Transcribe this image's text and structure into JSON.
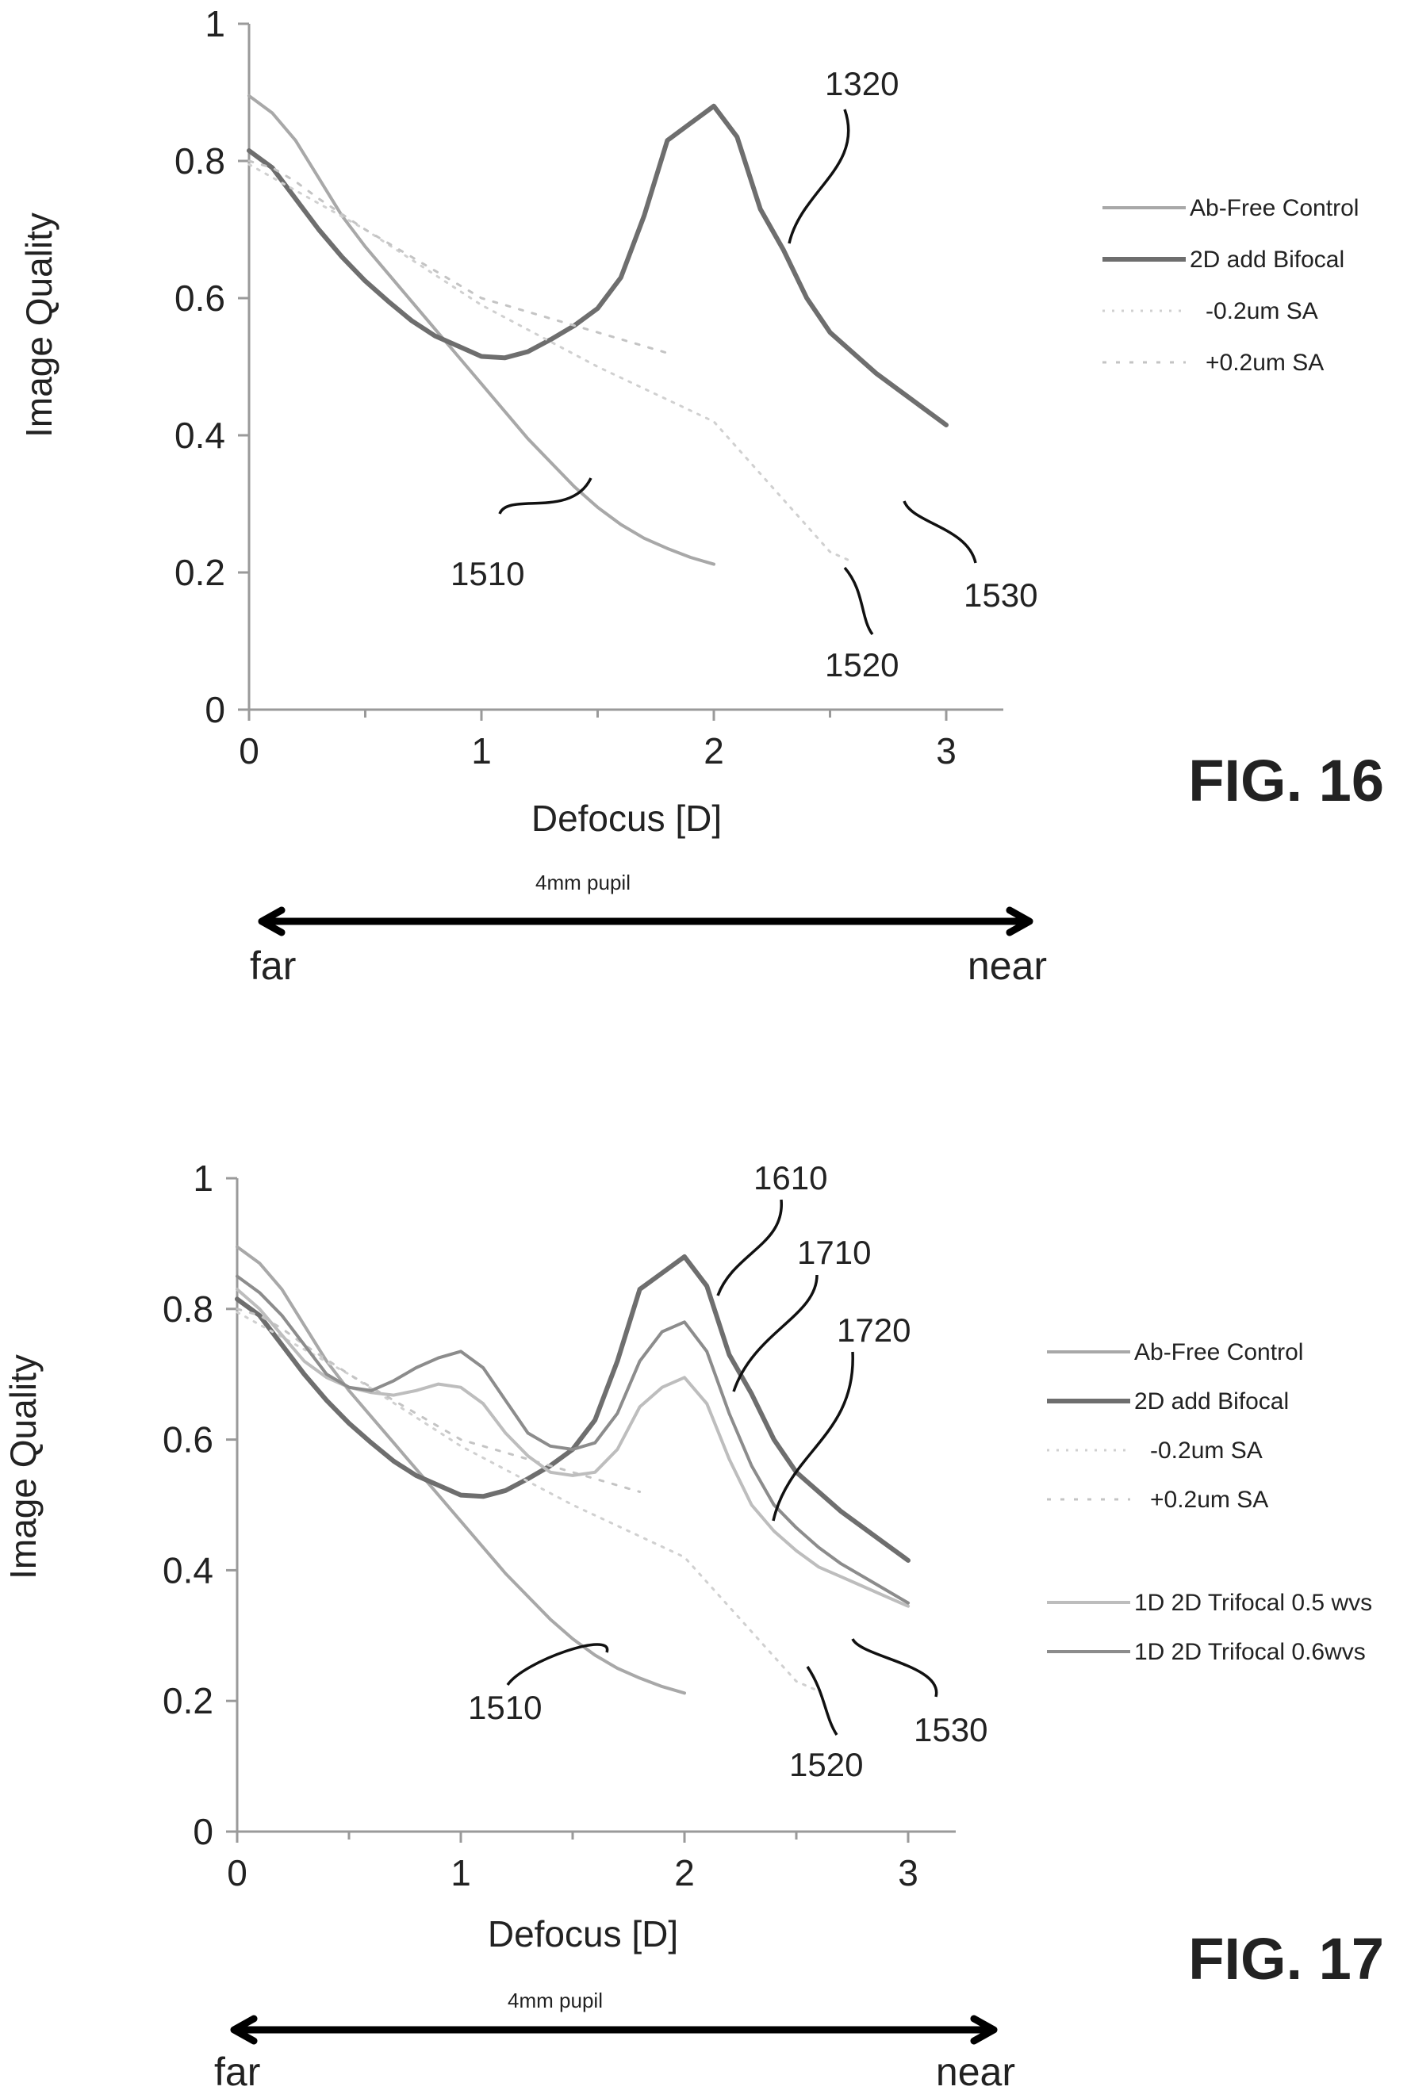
{
  "chart_data": [
    {
      "type": "line",
      "figure_label": "FIG. 16",
      "xlabel": "Defocus [D]",
      "ylabel": "Image Quality",
      "xlim": [
        0,
        3.2
      ],
      "ylim": [
        0,
        1
      ],
      "x_ticks": [
        "0",
        "1",
        "2",
        "3"
      ],
      "y_ticks": [
        "0",
        "0.2",
        "0.4",
        "0.6",
        "0.8",
        "1"
      ],
      "legend_position": "right",
      "pupil_label": "4mm pupil",
      "arrow_left_label": "far",
      "arrow_right_label": "near",
      "series": [
        {
          "name": "Ab-Free Control",
          "color": "#a8a8a8",
          "style": "solid",
          "width": 4,
          "x": [
            0,
            0.1,
            0.2,
            0.3,
            0.4,
            0.5,
            0.6,
            0.7,
            0.8,
            0.9,
            1.0,
            1.1,
            1.2,
            1.3,
            1.4,
            1.5,
            1.6,
            1.7,
            1.8,
            1.9,
            2.0
          ],
          "y": [
            0.895,
            0.87,
            0.83,
            0.775,
            0.72,
            0.675,
            0.635,
            0.595,
            0.555,
            0.515,
            0.475,
            0.435,
            0.395,
            0.36,
            0.325,
            0.295,
            0.27,
            0.25,
            0.235,
            0.222,
            0.212
          ]
        },
        {
          "name": "2D add Bifocal",
          "color": "#6e6e6e",
          "style": "solid",
          "width": 6,
          "x": [
            0,
            0.1,
            0.2,
            0.3,
            0.4,
            0.5,
            0.6,
            0.7,
            0.8,
            0.9,
            1.0,
            1.1,
            1.2,
            1.3,
            1.4,
            1.5,
            1.6,
            1.7,
            1.8,
            1.9,
            2.0,
            2.1,
            2.2,
            2.3,
            2.4,
            2.5,
            2.6,
            2.7,
            2.8,
            2.9,
            3.0
          ],
          "y": [
            0.815,
            0.79,
            0.745,
            0.7,
            0.66,
            0.625,
            0.595,
            0.567,
            0.545,
            0.53,
            0.515,
            0.513,
            0.522,
            0.54,
            0.56,
            0.585,
            0.63,
            0.72,
            0.83,
            0.855,
            0.88,
            0.835,
            0.73,
            0.67,
            0.6,
            0.55,
            0.52,
            0.49,
            0.465,
            0.44,
            0.415
          ]
        },
        {
          "name": "-0.2um SA",
          "color": "#d0d0d0",
          "style": "dotted",
          "width": 3,
          "x": [
            0,
            0.5,
            1.0,
            1.5,
            2.0,
            2.5,
            2.6
          ],
          "y": [
            0.795,
            0.7,
            0.59,
            0.5,
            0.42,
            0.23,
            0.215
          ]
        },
        {
          "name": "+0.2um SA",
          "color": "#c4c4c4",
          "style": "dashed",
          "width": 3,
          "x": [
            0,
            0.1,
            0.2,
            0.3,
            0.5,
            1.0,
            1.5,
            1.8
          ],
          "y": [
            0.8,
            0.79,
            0.77,
            0.745,
            0.7,
            0.6,
            0.55,
            0.52
          ]
        }
      ],
      "annotations": [
        {
          "text": "1320",
          "x": 2.35,
          "y": 0.68
        },
        {
          "text": "1510",
          "x": 1.45,
          "y": 0.33
        },
        {
          "text": "1520",
          "x": 2.5,
          "y": 0.2
        },
        {
          "text": "1530",
          "x": 2.9,
          "y": 0.3
        }
      ]
    },
    {
      "type": "line",
      "figure_label": "FIG. 17",
      "xlabel": "Defocus [D]",
      "ylabel": "Image Quality",
      "xlim": [
        0,
        3.2
      ],
      "ylim": [
        0,
        1
      ],
      "x_ticks": [
        "0",
        "1",
        "2",
        "3"
      ],
      "y_ticks": [
        "0",
        "0.2",
        "0.4",
        "0.6",
        "0.8",
        "1"
      ],
      "legend_position": "right",
      "pupil_label": "4mm pupil",
      "arrow_left_label": "far",
      "arrow_right_label": "near",
      "series": [
        {
          "name": "Ab-Free Control",
          "color": "#a8a8a8",
          "style": "solid",
          "width": 4,
          "x": [
            0,
            0.1,
            0.2,
            0.3,
            0.4,
            0.5,
            0.6,
            0.7,
            0.8,
            0.9,
            1.0,
            1.1,
            1.2,
            1.3,
            1.4,
            1.5,
            1.6,
            1.7,
            1.8,
            1.9,
            2.0
          ],
          "y": [
            0.895,
            0.87,
            0.83,
            0.775,
            0.72,
            0.675,
            0.635,
            0.595,
            0.555,
            0.515,
            0.475,
            0.435,
            0.395,
            0.36,
            0.325,
            0.295,
            0.27,
            0.25,
            0.235,
            0.222,
            0.212
          ]
        },
        {
          "name": "2D add Bifocal",
          "color": "#6e6e6e",
          "style": "solid",
          "width": 6,
          "x": [
            0,
            0.1,
            0.2,
            0.3,
            0.4,
            0.5,
            0.6,
            0.7,
            0.8,
            0.9,
            1.0,
            1.1,
            1.2,
            1.3,
            1.4,
            1.5,
            1.6,
            1.7,
            1.8,
            1.9,
            2.0,
            2.1,
            2.2,
            2.3,
            2.4,
            2.5,
            2.6,
            2.7,
            2.8,
            2.9,
            3.0
          ],
          "y": [
            0.815,
            0.79,
            0.745,
            0.7,
            0.66,
            0.625,
            0.595,
            0.567,
            0.545,
            0.53,
            0.515,
            0.513,
            0.522,
            0.54,
            0.56,
            0.585,
            0.63,
            0.72,
            0.83,
            0.855,
            0.88,
            0.835,
            0.73,
            0.67,
            0.6,
            0.55,
            0.52,
            0.49,
            0.465,
            0.44,
            0.415
          ]
        },
        {
          "name": "-0.2um SA",
          "color": "#d0d0d0",
          "style": "dotted",
          "width": 3,
          "x": [
            0,
            0.5,
            1.0,
            1.5,
            2.0,
            2.5,
            2.6
          ],
          "y": [
            0.795,
            0.7,
            0.59,
            0.5,
            0.42,
            0.23,
            0.215
          ]
        },
        {
          "name": "+0.2um SA",
          "color": "#c4c4c4",
          "style": "dashed",
          "width": 3,
          "x": [
            0,
            0.1,
            0.2,
            0.3,
            0.5,
            1.0,
            1.5,
            1.8
          ],
          "y": [
            0.8,
            0.79,
            0.77,
            0.745,
            0.7,
            0.6,
            0.55,
            0.52
          ]
        },
        {
          "name": "1D 2D Trifocal 0.5 wvs",
          "color": "#bdbdbd",
          "style": "solid",
          "width": 4,
          "x": [
            0,
            0.1,
            0.2,
            0.3,
            0.4,
            0.5,
            0.6,
            0.7,
            0.8,
            0.9,
            1.0,
            1.1,
            1.2,
            1.3,
            1.4,
            1.5,
            1.6,
            1.7,
            1.8,
            1.9,
            2.0,
            2.1,
            2.2,
            2.3,
            2.4,
            2.5,
            2.6,
            2.7,
            2.8,
            2.9,
            3.0
          ],
          "y": [
            0.83,
            0.8,
            0.76,
            0.72,
            0.695,
            0.68,
            0.672,
            0.668,
            0.675,
            0.685,
            0.68,
            0.655,
            0.61,
            0.575,
            0.55,
            0.545,
            0.55,
            0.585,
            0.65,
            0.68,
            0.695,
            0.655,
            0.57,
            0.5,
            0.46,
            0.43,
            0.405,
            0.39,
            0.375,
            0.36,
            0.345
          ]
        },
        {
          "name": "1D 2D Trifocal 0.6wvs",
          "color": "#8c8c8c",
          "style": "solid",
          "width": 4,
          "x": [
            0,
            0.1,
            0.2,
            0.3,
            0.4,
            0.5,
            0.6,
            0.7,
            0.8,
            0.9,
            1.0,
            1.1,
            1.2,
            1.3,
            1.4,
            1.5,
            1.6,
            1.7,
            1.8,
            1.9,
            2.0,
            2.1,
            2.2,
            2.3,
            2.4,
            2.5,
            2.6,
            2.7,
            2.8,
            2.9,
            3.0
          ],
          "y": [
            0.85,
            0.825,
            0.79,
            0.745,
            0.7,
            0.68,
            0.675,
            0.69,
            0.71,
            0.725,
            0.735,
            0.71,
            0.66,
            0.61,
            0.59,
            0.585,
            0.595,
            0.64,
            0.72,
            0.765,
            0.78,
            0.735,
            0.64,
            0.56,
            0.5,
            0.465,
            0.435,
            0.41,
            0.39,
            0.37,
            0.35
          ]
        }
      ],
      "annotations": [
        {
          "text": "1610",
          "x": 2.15,
          "y": 0.81
        },
        {
          "text": "1710",
          "x": 2.25,
          "y": 0.65
        },
        {
          "text": "1720",
          "x": 2.4,
          "y": 0.48
        },
        {
          "text": "1510",
          "x": 1.65,
          "y": 0.27
        },
        {
          "text": "1520",
          "x": 2.55,
          "y": 0.24
        },
        {
          "text": "1530",
          "x": 2.8,
          "y": 0.3
        }
      ]
    }
  ]
}
